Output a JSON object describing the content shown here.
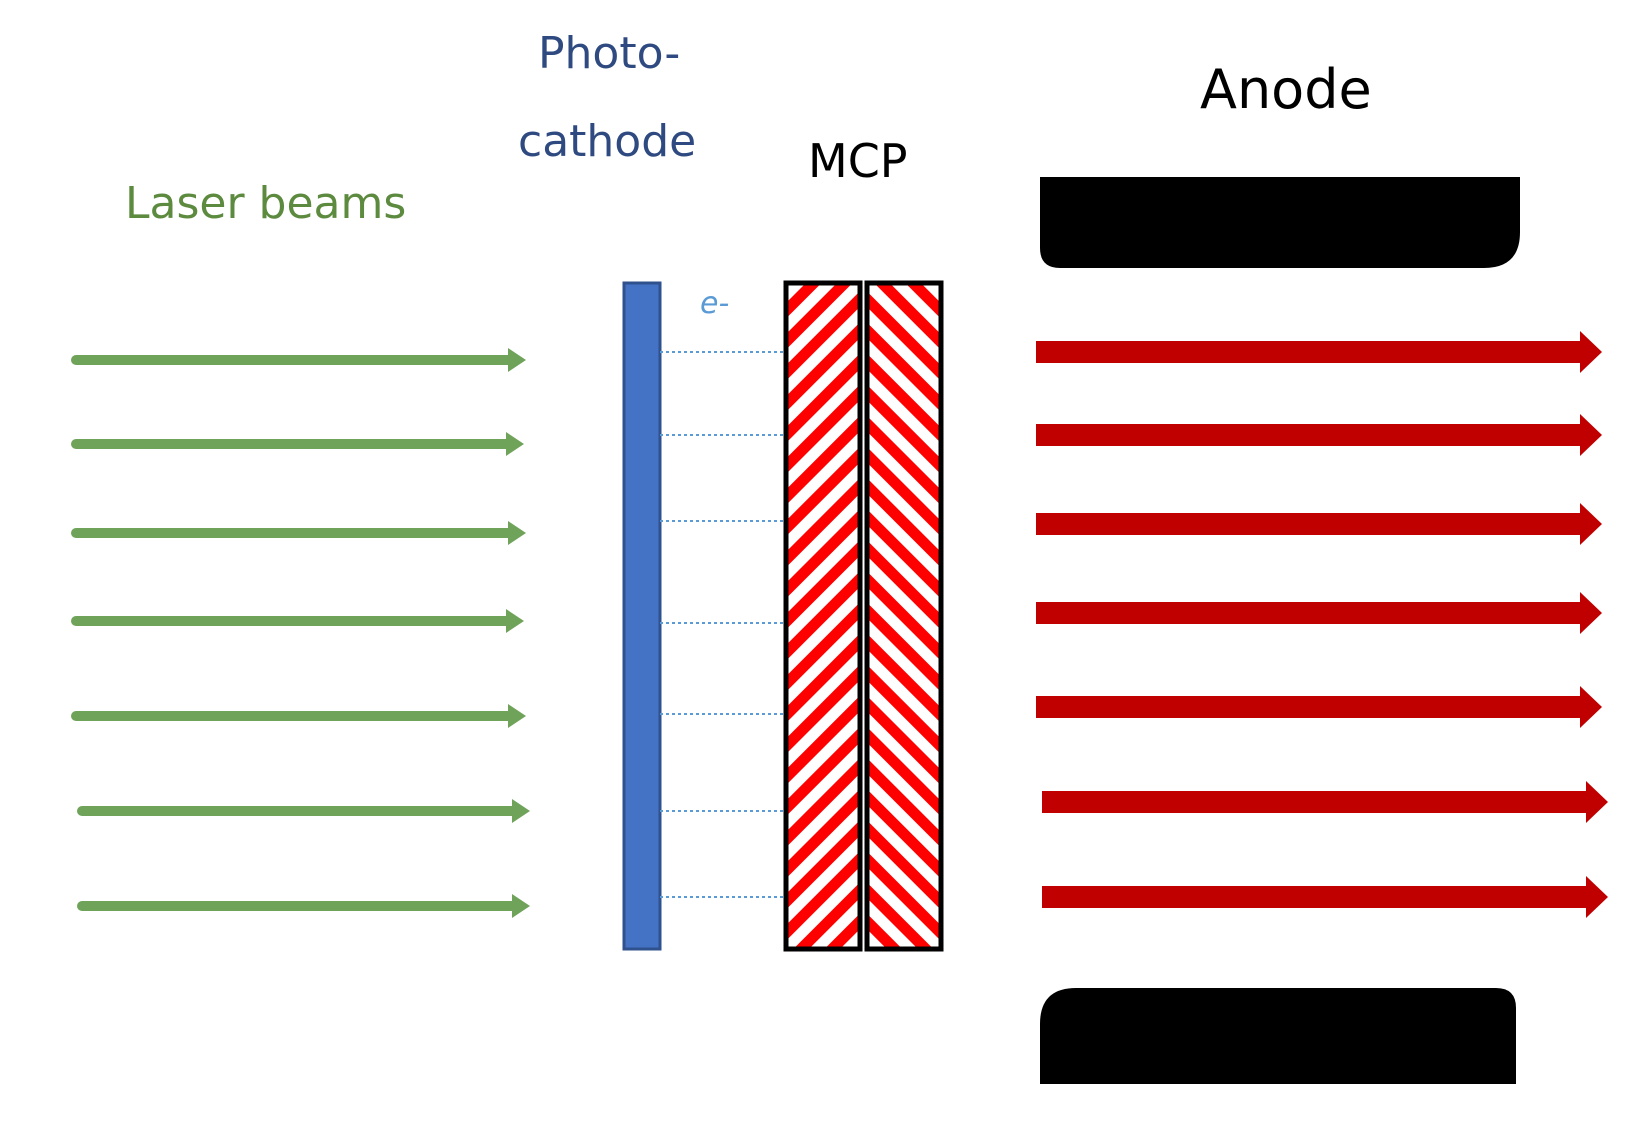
{
  "labels": {
    "laser_beams": "Laser beams",
    "photocathode_line1": "Photo-",
    "photocathode_line2": "cathode",
    "mcp": "MCP",
    "anode": "Anode",
    "electron": "e-"
  },
  "colors": {
    "laser_beam": "#70a35a",
    "laser_text": "#5c8a3e",
    "photocathode": "#4472c4",
    "photocathode_text": "#2f4a80",
    "electron": "#5b9bd5",
    "mcp_hatch": "#ff0000",
    "output_beam": "#c00000",
    "anode": "#000000"
  },
  "counts": {
    "laser_beams": 7,
    "electron_paths": 7,
    "output_beams": 7,
    "mcp_plates": 2,
    "anode_plates": 2
  }
}
